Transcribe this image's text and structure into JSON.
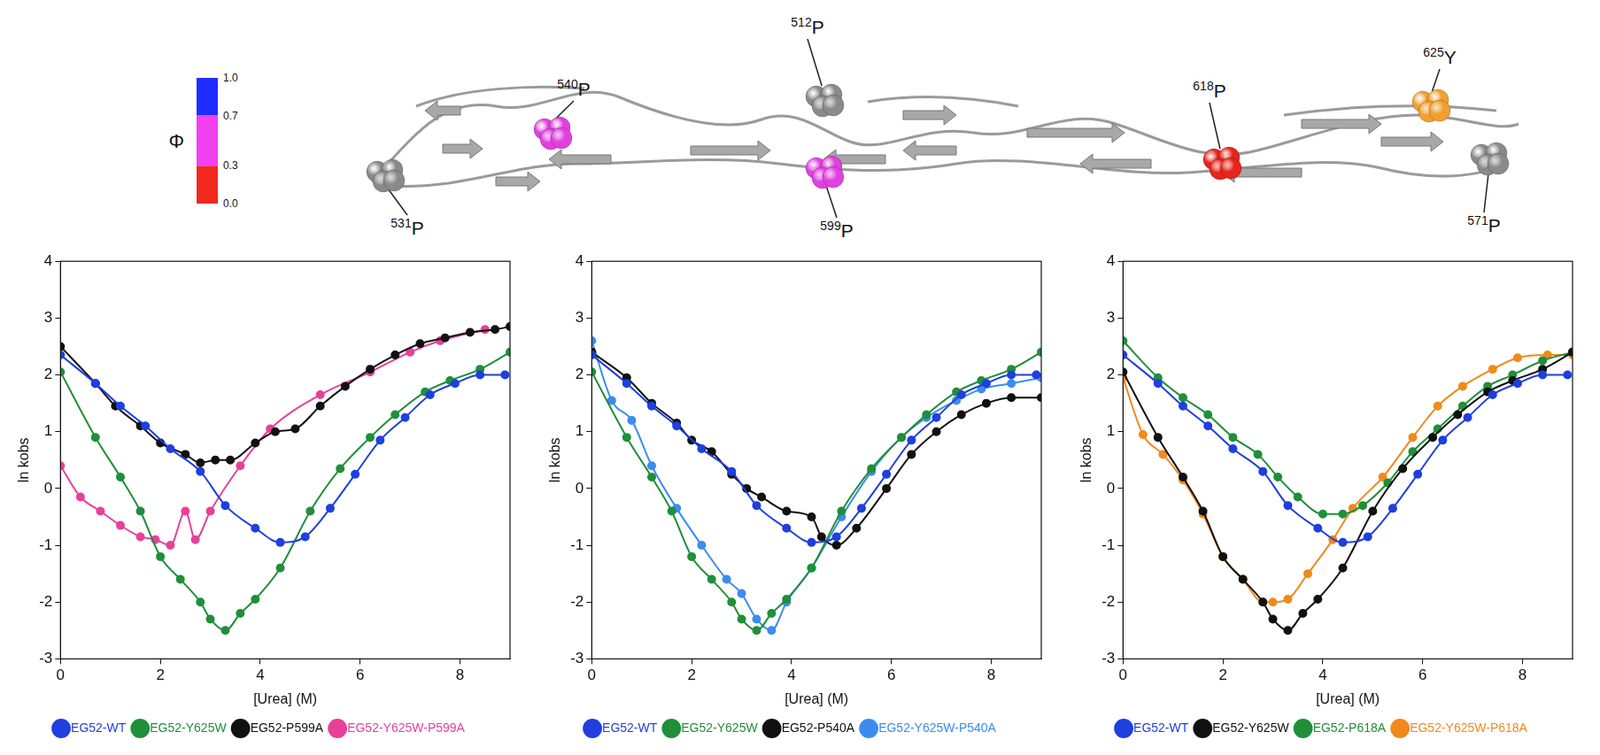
{
  "structure": {
    "colorbar": {
      "title": "Φ",
      "range": [
        0,
        1
      ],
      "ticks": [
        {
          "value": 0,
          "label": "0.0"
        },
        0.3,
        0.7,
        {
          "value": 1,
          "label": "1.0"
        }
      ],
      "bands": [
        {
          "from": 0.7,
          "to": 1,
          "color": "#1f2dff"
        },
        {
          "from": 0.3,
          "to": 0.7,
          "color": "#f040f0"
        },
        {
          "from": 0,
          "to": 0.3,
          "color": "#f0281e"
        }
      ]
    },
    "residues": [
      {
        "position": 531,
        "residue": "P",
        "color": "#8a8a8a"
      },
      {
        "position": 540,
        "residue": "P",
        "color": "#e040e0"
      },
      {
        "position": 512,
        "residue": "P",
        "color": "#8a8a8a"
      },
      {
        "position": 599,
        "residue": "P",
        "color": "#e040e0"
      },
      {
        "position": 618,
        "residue": "P",
        "color": "#e8241c"
      },
      {
        "position": 625,
        "residue": "Y",
        "color": "#f0a030"
      },
      {
        "position": 571,
        "residue": "P",
        "color": "#8a8a8a"
      }
    ]
  },
  "chart_data": [
    {
      "type": "line",
      "xlabel": "[Urea] (M)",
      "ylabel": "ln kobs",
      "xlim": [
        0,
        9
      ],
      "xticks": [
        0,
        2,
        4,
        6,
        8
      ],
      "ylim": [
        -3,
        4
      ],
      "yticks": [
        -3,
        -2,
        -1,
        0,
        1,
        2,
        3,
        4
      ],
      "grid": false,
      "legend": "bottom",
      "marker": "circle",
      "line_style": "solid",
      "series": [
        {
          "name": "EG52-WT",
          "color": "#1f3fdf",
          "x": [
            0,
            0.7,
            1.2,
            1.7,
            2.2,
            2.8,
            3.3,
            3.9,
            4.4,
            4.9,
            5.4,
            5.9,
            6.4,
            6.9,
            7.4,
            7.9,
            8.4,
            8.9
          ],
          "values": [
            2.35,
            1.85,
            1.45,
            1.1,
            0.7,
            0.3,
            -0.3,
            -0.7,
            -0.95,
            -0.85,
            -0.35,
            0.25,
            0.85,
            1.25,
            1.65,
            1.85,
            2.0,
            2.0
          ]
        },
        {
          "name": "EG52-Y625W",
          "color": "#1f8f3a",
          "x": [
            0,
            0.7,
            1.2,
            1.6,
            2.0,
            2.4,
            2.8,
            3.0,
            3.3,
            3.6,
            3.9,
            4.4,
            5.0,
            5.6,
            6.2,
            6.7,
            7.3,
            7.8,
            8.4,
            9.0
          ],
          "values": [
            2.05,
            0.9,
            0.2,
            -0.4,
            -1.2,
            -1.6,
            -2.0,
            -2.3,
            -2.5,
            -2.2,
            -1.95,
            -1.4,
            -0.4,
            0.35,
            0.9,
            1.3,
            1.7,
            1.9,
            2.1,
            2.4
          ]
        },
        {
          "name": "EG52-P599A",
          "color": "#111111",
          "x": [
            0,
            0.7,
            1.1,
            1.6,
            2.0,
            2.5,
            2.8,
            3.1,
            3.4,
            3.9,
            4.3,
            4.7,
            5.2,
            5.7,
            6.2,
            6.7,
            7.2,
            7.7,
            8.2,
            8.7,
            9.0
          ],
          "values": [
            2.5,
            1.85,
            1.45,
            1.1,
            0.8,
            0.6,
            0.45,
            0.5,
            0.5,
            0.8,
            1.0,
            1.05,
            1.45,
            1.8,
            2.1,
            2.35,
            2.55,
            2.65,
            2.75,
            2.8,
            2.85
          ]
        },
        {
          "name": "EG52-Y625W-P599A",
          "color": "#e8409a",
          "x": [
            0,
            0.4,
            0.8,
            1.2,
            1.6,
            1.9,
            2.2,
            2.5,
            2.7,
            3.0,
            3.6,
            4.2,
            5.2,
            6.2,
            7.0,
            7.6,
            8.5
          ],
          "values": [
            0.4,
            -0.15,
            -0.4,
            -0.65,
            -0.85,
            -0.9,
            -1.0,
            -0.4,
            -0.9,
            -0.4,
            0.4,
            1.05,
            1.65,
            2.05,
            2.4,
            2.6,
            2.8
          ]
        }
      ]
    },
    {
      "type": "line",
      "xlabel": "[Urea] (M)",
      "ylabel": "ln kobs",
      "xlim": [
        0,
        9
      ],
      "xticks": [
        0,
        2,
        4,
        6,
        8
      ],
      "ylim": [
        -3,
        4
      ],
      "yticks": [
        -3,
        -2,
        -1,
        0,
        1,
        2,
        3,
        4
      ],
      "grid": false,
      "legend": "bottom",
      "marker": "circle",
      "line_style": "solid",
      "series": [
        {
          "name": "EG52-WT",
          "color": "#1f3fdf",
          "x": [
            0,
            0.7,
            1.2,
            1.7,
            2.2,
            2.8,
            3.3,
            3.9,
            4.4,
            4.9,
            5.4,
            5.9,
            6.4,
            6.9,
            7.4,
            7.9,
            8.4,
            8.9
          ],
          "values": [
            2.35,
            1.85,
            1.45,
            1.1,
            0.7,
            0.3,
            -0.3,
            -0.7,
            -0.95,
            -0.85,
            -0.35,
            0.25,
            0.85,
            1.25,
            1.65,
            1.85,
            2.0,
            2.0
          ]
        },
        {
          "name": "EG52-Y625W",
          "color": "#1f8f3a",
          "x": [
            0,
            0.7,
            1.2,
            1.6,
            2.0,
            2.4,
            2.8,
            3.0,
            3.3,
            3.6,
            3.9,
            4.4,
            5.0,
            5.6,
            6.2,
            6.7,
            7.3,
            7.8,
            8.4,
            9.0
          ],
          "values": [
            2.05,
            0.9,
            0.2,
            -0.4,
            -1.2,
            -1.6,
            -2.0,
            -2.3,
            -2.5,
            -2.2,
            -1.95,
            -1.4,
            -0.4,
            0.35,
            0.9,
            1.3,
            1.7,
            1.9,
            2.1,
            2.4
          ]
        },
        {
          "name": "EG52-P540A",
          "color": "#111111",
          "x": [
            0,
            0.7,
            1.2,
            1.7,
            2.0,
            2.4,
            2.8,
            3.1,
            3.4,
            3.9,
            4.4,
            4.6,
            4.9,
            5.3,
            5.9,
            6.4,
            6.9,
            7.4,
            7.9,
            8.4,
            9.0
          ],
          "values": [
            2.4,
            1.95,
            1.5,
            1.15,
            0.85,
            0.65,
            0.25,
            0.0,
            -0.15,
            -0.4,
            -0.5,
            -0.85,
            -1.0,
            -0.7,
            0.0,
            0.6,
            1.0,
            1.3,
            1.5,
            1.6,
            1.6
          ]
        },
        {
          "name": "EG52-Y625W-P540A",
          "color": "#3c8cf0",
          "x": [
            0,
            0.4,
            0.8,
            1.2,
            1.7,
            2.2,
            2.7,
            3.0,
            3.3,
            3.6,
            3.9,
            4.4,
            5.0,
            5.6,
            6.2,
            6.7,
            7.3,
            7.8,
            8.4,
            9.0
          ],
          "values": [
            2.6,
            1.55,
            1.2,
            0.4,
            -0.35,
            -1.0,
            -1.6,
            -1.85,
            -2.3,
            -2.5,
            -2.0,
            -1.4,
            -0.5,
            0.3,
            0.9,
            1.25,
            1.55,
            1.75,
            1.85,
            1.95
          ]
        }
      ]
    },
    {
      "type": "line",
      "xlabel": "[Urea] (M)",
      "ylabel": "ln kobs",
      "xlim": [
        0,
        9
      ],
      "xticks": [
        0,
        2,
        4,
        6,
        8
      ],
      "ylim": [
        -3,
        4
      ],
      "yticks": [
        -3,
        -2,
        -1,
        0,
        1,
        2,
        3,
        4
      ],
      "grid": false,
      "legend": "bottom",
      "marker": "circle",
      "line_style": "solid",
      "series": [
        {
          "name": "EG52-WT",
          "color": "#1f3fdf",
          "x": [
            0,
            0.7,
            1.2,
            1.7,
            2.2,
            2.8,
            3.3,
            3.9,
            4.4,
            4.9,
            5.4,
            5.9,
            6.4,
            6.9,
            7.4,
            7.9,
            8.4,
            8.9
          ],
          "values": [
            2.35,
            1.85,
            1.45,
            1.1,
            0.7,
            0.3,
            -0.3,
            -0.7,
            -0.95,
            -0.85,
            -0.35,
            0.25,
            0.85,
            1.25,
            1.65,
            1.85,
            2.0,
            2.0
          ]
        },
        {
          "name": "EG52-Y625W",
          "color": "#111111",
          "x": [
            0,
            0.7,
            1.2,
            1.6,
            2.0,
            2.4,
            2.8,
            3.0,
            3.3,
            3.6,
            3.9,
            4.4,
            5.0,
            5.6,
            6.2,
            6.7,
            7.3,
            7.8,
            8.4,
            9.0
          ],
          "values": [
            2.05,
            0.9,
            0.2,
            -0.4,
            -1.2,
            -1.6,
            -2.0,
            -2.3,
            -2.5,
            -2.2,
            -1.95,
            -1.4,
            -0.4,
            0.35,
            0.9,
            1.3,
            1.7,
            1.9,
            2.1,
            2.4
          ]
        },
        {
          "name": "EG52-P618A",
          "color": "#1f8f3a",
          "x": [
            0,
            0.7,
            1.2,
            1.7,
            2.2,
            2.7,
            3.1,
            3.5,
            4.0,
            4.4,
            4.8,
            5.3,
            5.8,
            6.3,
            6.8,
            7.3,
            7.8,
            8.4,
            9.0
          ],
          "values": [
            2.6,
            1.95,
            1.6,
            1.3,
            0.9,
            0.6,
            0.2,
            -0.15,
            -0.45,
            -0.45,
            -0.3,
            0.1,
            0.65,
            1.05,
            1.45,
            1.8,
            2.0,
            2.25,
            2.4
          ]
        },
        {
          "name": "EG52-Y625W-P618A",
          "color": "#f08a1c",
          "x": [
            0,
            0.4,
            0.8,
            1.2,
            1.6,
            2.0,
            2.4,
            2.8,
            3.0,
            3.3,
            3.7,
            4.2,
            4.6,
            5.2,
            5.8,
            6.3,
            6.8,
            7.4,
            7.9,
            8.5,
            9.0
          ],
          "values": [
            1.95,
            0.95,
            0.6,
            0.15,
            -0.45,
            -1.2,
            -1.6,
            -2.0,
            -2.0,
            -1.95,
            -1.5,
            -0.9,
            -0.35,
            0.2,
            0.9,
            1.45,
            1.8,
            2.1,
            2.3,
            2.35,
            2.35
          ]
        }
      ]
    }
  ]
}
